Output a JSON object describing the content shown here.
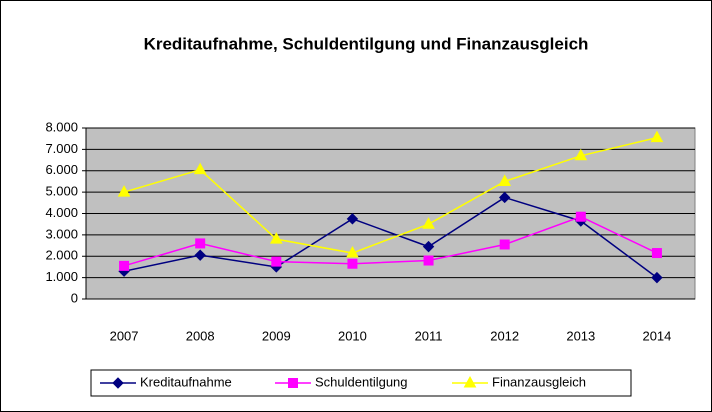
{
  "chart_data": {
    "type": "line",
    "title": "Kreditaufnahme, Schuldentilgung und Finanzausgleich",
    "categories": [
      "2007",
      "2008",
      "2009",
      "2010",
      "2011",
      "2012",
      "2013",
      "2014"
    ],
    "series": [
      {
        "name": "Kreditaufnahme",
        "color": "#000080",
        "marker": "diamond",
        "values": [
          1300,
          2050,
          1500,
          3750,
          2450,
          4750,
          3650,
          1000
        ]
      },
      {
        "name": "Schuldentilgung",
        "color": "#ff00ff",
        "marker": "square",
        "values": [
          1550,
          2600,
          1750,
          1650,
          1800,
          2550,
          3850,
          2150
        ]
      },
      {
        "name": "Finanzausgleich",
        "color": "#ffff00",
        "marker": "triangle",
        "values": [
          5000,
          6050,
          2800,
          2150,
          3500,
          5500,
          6700,
          7550
        ]
      }
    ],
    "ylim": [
      0,
      8000
    ],
    "yticks": [
      0,
      {
        "value": 1000,
        "label": "1.000"
      },
      {
        "value": 2000,
        "label": "2.000"
      },
      {
        "value": 3000,
        "label": "3.000"
      },
      {
        "value": 4000,
        "label": "4.000"
      },
      {
        "value": 5000,
        "label": "5.000"
      },
      {
        "value": 6000,
        "label": "6.000"
      },
      {
        "value": 7000,
        "label": "7.000"
      },
      {
        "value": 8000,
        "label": "8.000"
      }
    ],
    "grid": true,
    "legend": "bottom",
    "plot_background": "#c0c0c0"
  }
}
